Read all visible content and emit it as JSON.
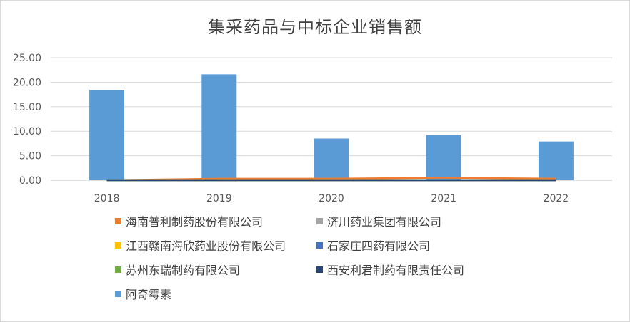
{
  "chart_data": {
    "type": "bar",
    "title": "集采药品与中标企业销售额",
    "categories": [
      "2018",
      "2019",
      "2020",
      "2021",
      "2022"
    ],
    "ylim": [
      0,
      25
    ],
    "yticks": [
      "0.00",
      "5.00",
      "10.00",
      "15.00",
      "20.00",
      "25.00"
    ],
    "grid": true,
    "legend_position": "bottom",
    "series": [
      {
        "name": "海南普利制药股份有限公司",
        "type": "line",
        "color": "#ED7D31",
        "values": [
          0.0,
          0.3,
          0.3,
          0.5,
          0.3
        ]
      },
      {
        "name": "济川药业集团有限公司",
        "type": "line",
        "color": "#A5A5A5",
        "values": [
          0.0,
          0.0,
          0.0,
          0.0,
          0.0
        ]
      },
      {
        "name": "江西赣南海欣药业股份有限公司",
        "type": "line",
        "color": "#FFC000",
        "values": [
          0.0,
          0.0,
          0.0,
          0.0,
          0.0
        ]
      },
      {
        "name": "石家庄四药有限公司",
        "type": "line",
        "color": "#4472C4",
        "values": [
          0.0,
          0.0,
          0.0,
          0.0,
          0.0
        ]
      },
      {
        "name": "苏州东瑞制药有限公司",
        "type": "line",
        "color": "#70AD47",
        "values": [
          0.0,
          0.0,
          0.0,
          0.0,
          0.0
        ]
      },
      {
        "name": "西安利君制药有限责任公司",
        "type": "line",
        "color": "#264478",
        "values": [
          0.0,
          0.0,
          0.0,
          0.0,
          0.0
        ]
      },
      {
        "name": "阿奇霉素",
        "type": "bar",
        "color": "#5B9BD5",
        "values": [
          18.4,
          21.6,
          8.5,
          9.2,
          7.9
        ]
      }
    ]
  }
}
